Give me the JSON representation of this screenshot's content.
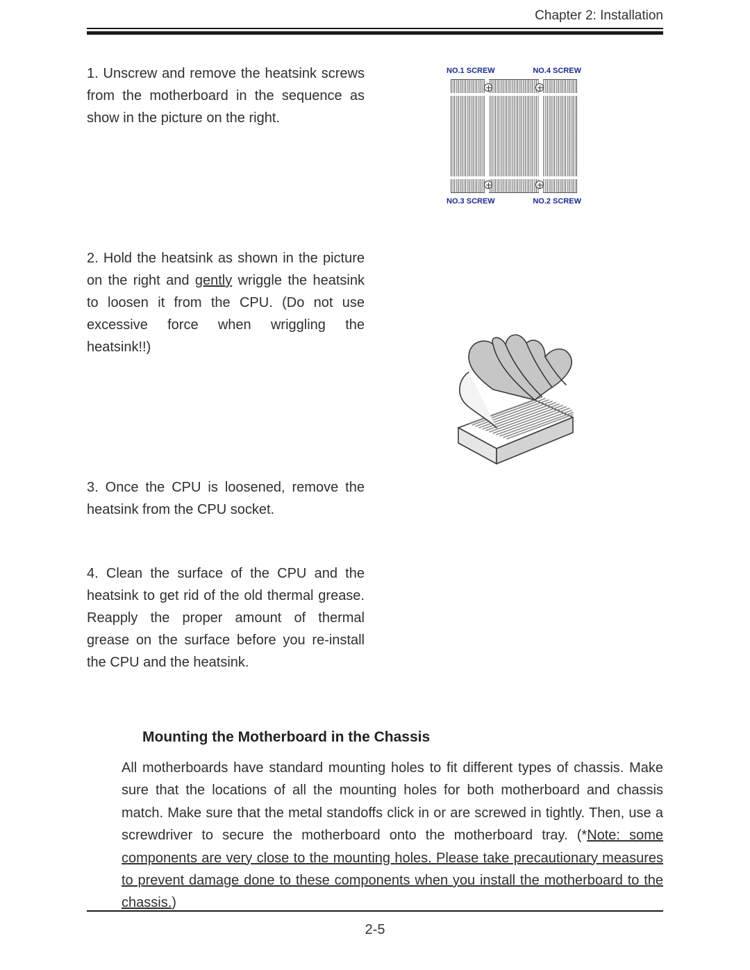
{
  "header": {
    "chapter_label": "Chapter 2: Installation"
  },
  "steps": {
    "s1": {
      "prefix": "1. Unscrew and remove the heatsink screws from the motherboard in the sequence as show in the picture on the right."
    },
    "s2": {
      "before": "2. Hold the heatsink as shown in the picture on the right and ",
      "u": "gently",
      "after": " wriggle the heatsink to loosen it from the CPU. (Do not use excessive force when wriggling the heatsink!!)"
    },
    "s3": {
      "text": "3. Once the CPU is loosened, remove the heatsink from the CPU socket."
    },
    "s4": {
      "text": "4. Clean the surface of the CPU and the heatsink to get rid of the old thermal grease. Reapply the proper amount of thermal grease on the surface before you re-install the CPU and the heatsink."
    }
  },
  "heatsink_diagram": {
    "labels": {
      "tl": "NO.1 SCREW",
      "tr": "NO.4 SCREW",
      "bl": "NO.3 SCREW",
      "br": "NO.2 SCREW"
    },
    "colors": {
      "label_color": "#1a2a8a",
      "outline": "#555555",
      "fin_stroke": "#777777"
    },
    "fin_count": 34
  },
  "hand_figure": {
    "stroke": "#3a3a3a",
    "fill_light": "#f3f3f3",
    "fill_shadow": "#c6c6c6"
  },
  "mounting_section": {
    "heading": "Mounting the Motherboard in the Chassis",
    "body_before": "All motherboards have standard mounting holes to fit different types of chassis.  Make sure that the locations of all the mounting holes for both motherboard and chassis match. Make sure that the metal standoffs click in or are screwed in tightly.  Then, use a screwdriver to secure the motherboard onto the motherboard tray.  (*",
    "body_u": "Note: some components are very close to the mounting holes.  Please take precautionary measures to prevent damage done to these components when you install the motherboard to the chassis.",
    "body_after": ")"
  },
  "footer": {
    "page_number": "2-5"
  }
}
